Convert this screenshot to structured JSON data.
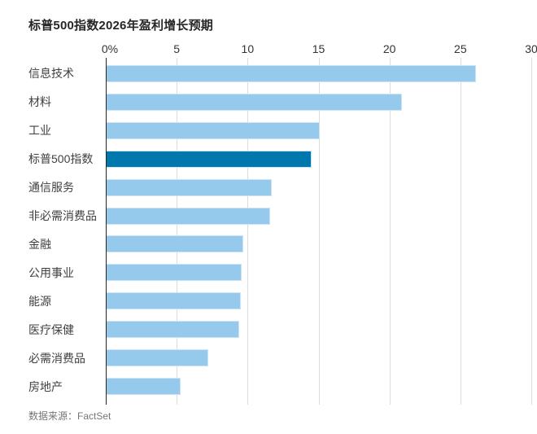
{
  "title": "标普500指数2026年盈利增长预期",
  "source": "数据来源：FactSet",
  "chart_data": {
    "type": "bar",
    "orientation": "horizontal",
    "title": "标普500指数2026年盈利增长预期",
    "categories": [
      "信息技术",
      "材料",
      "工业",
      "标普500指数",
      "通信服务",
      "非必需消费品",
      "金融",
      "公用事业",
      "能源",
      "医疗保健",
      "必需消费品",
      "房地产"
    ],
    "values": [
      26.1,
      20.9,
      15.1,
      14.5,
      11.7,
      11.6,
      9.7,
      9.6,
      9.5,
      9.4,
      7.2,
      5.3
    ],
    "unit": "%",
    "highlight_category": "标普500指数",
    "xticks": [
      "0%",
      "5",
      "10",
      "15",
      "20",
      "25",
      "30"
    ],
    "xtick_values": [
      0,
      5,
      10,
      15,
      20,
      25,
      30
    ],
    "xlim": [
      0,
      30
    ],
    "grid": "vertical",
    "colors": {
      "bar": "#95caec",
      "bar_border": "#cde4f6",
      "highlight": "#0078ad",
      "highlight_border": "#cde4f6",
      "gridline": "#dcdcdc",
      "axis_line": "#262626",
      "title_text": "#262626",
      "label_text": "#404040",
      "tick_text": "#333333",
      "source_text": "#767676"
    },
    "source": "数据来源：FactSet"
  }
}
